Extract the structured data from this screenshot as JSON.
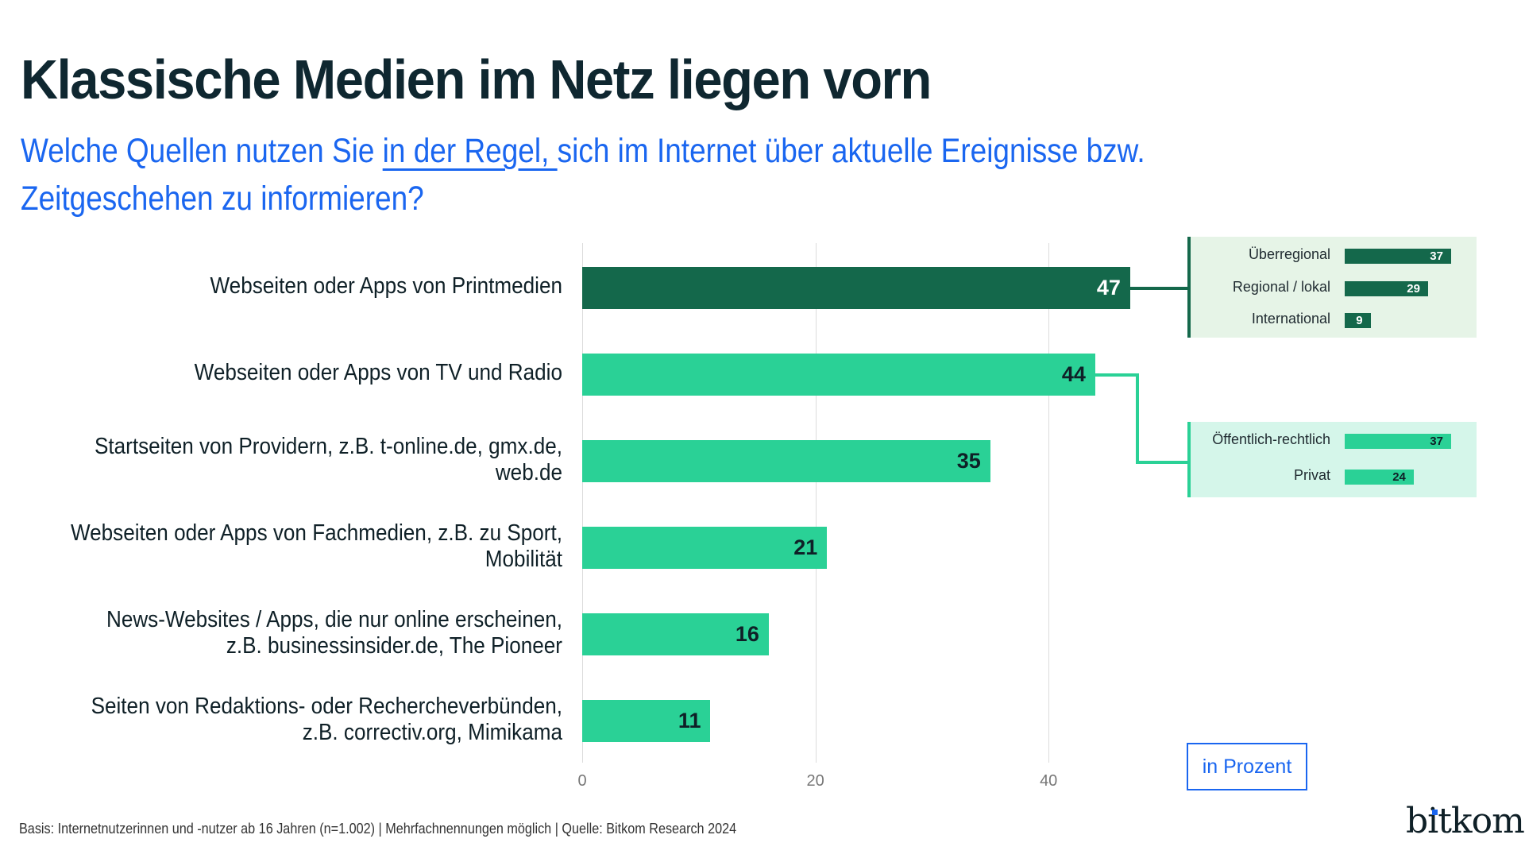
{
  "title": "Klassische Medien im Netz liegen vorn",
  "subtitle": {
    "part1": "Welche Quellen nutzen Sie ",
    "underlined": "in der Regel, ",
    "part2": "sich im Internet über aktuelle Ereignisse bzw.",
    "line2": "Zeitgeschehen zu informieren?"
  },
  "colors": {
    "dark_green": "#14684b",
    "light_green": "#2ad196",
    "panel1_bg": "#e6f4e7",
    "panel2_bg": "#d5f6ea",
    "accent_blue": "#1a66f0",
    "text_dark": "#0f2027"
  },
  "chart_data": {
    "type": "bar",
    "orientation": "horizontal",
    "title": "Klassische Medien im Netz liegen vorn",
    "xlabel": "",
    "ylabel": "",
    "unit": "in Prozent",
    "xlim": [
      0,
      50
    ],
    "xticks": [
      0,
      20,
      40
    ],
    "grid": true,
    "categories": [
      "Webseiten oder Apps von Printmedien",
      "Webseiten oder Apps von TV und Radio",
      "Startseiten von Providern, z.B. t-online.de, gmx.de, web.de",
      "Webseiten oder Apps von Fachmedien, z.B. zu Sport, Mobilität",
      "News-Websites / Apps, die nur online erscheinen, z.B. businessinsider.de, The Pioneer",
      "Seiten von Redaktions- oder Rechercheverbünden, z.B. correctiv.org, Mimikama"
    ],
    "category_lines": [
      [
        "Webseiten oder Apps von Printmedien"
      ],
      [
        "Webseiten oder Apps von TV und Radio"
      ],
      [
        "Startseiten von Providern, z.B. t-online.de, gmx.de,",
        "web.de"
      ],
      [
        "Webseiten oder Apps von Fachmedien, z.B. zu Sport,",
        "Mobilität"
      ],
      [
        "News-Websites / Apps, die nur online erscheinen,",
        "z.B. businessinsider.de, The Pioneer"
      ],
      [
        "Seiten von Redaktions- oder Rechercheverbünden,",
        "z.B. correctiv.org, Mimikama"
      ]
    ],
    "values": [
      47,
      44,
      35,
      21,
      16,
      11
    ],
    "highlight_index": 0,
    "breakdowns": [
      {
        "parent_index": 0,
        "items": [
          {
            "label": "Überregional",
            "value": 37
          },
          {
            "label": "Regional / lokal",
            "value": 29
          },
          {
            "label": "International",
            "value": 9
          }
        ]
      },
      {
        "parent_index": 1,
        "items": [
          {
            "label": "Öffentlich-rechtlich",
            "value": 37
          },
          {
            "label": "Privat",
            "value": 24
          }
        ]
      }
    ]
  },
  "unit_label": "in Prozent",
  "footnote": "Basis: Internetnutzerinnen und -nutzer ab 16 Jahren (n=1.002) | Mehrfachnennungen möglich | Quelle: Bitkom Research 2024",
  "logo": "bitkom"
}
